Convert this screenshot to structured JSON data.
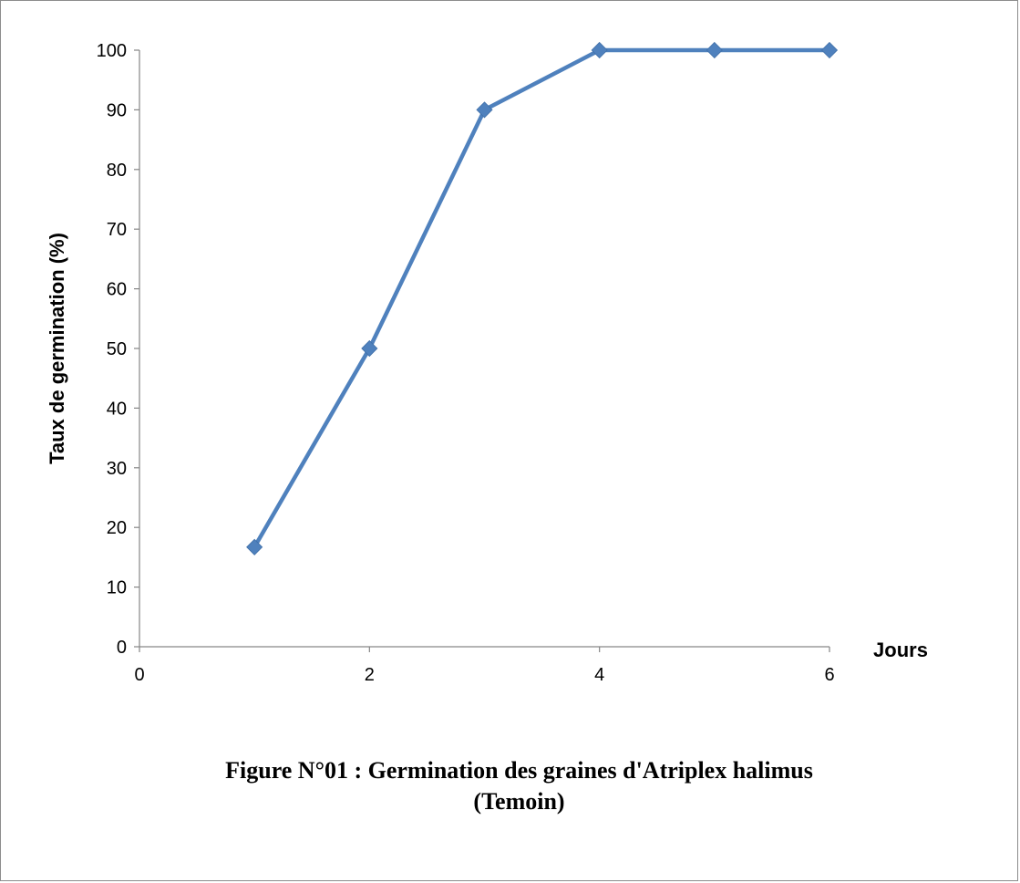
{
  "chart_data": {
    "type": "line",
    "ylabel": "Taux de germination (%)",
    "xlabel": "Jours",
    "xlim": [
      0,
      6
    ],
    "ylim": [
      0,
      100
    ],
    "xticks": [
      0,
      2,
      4,
      6
    ],
    "yticks": [
      0,
      10,
      20,
      30,
      40,
      50,
      60,
      70,
      80,
      90,
      100
    ],
    "grid": false,
    "series": [
      {
        "x": [
          1,
          2,
          3,
          4,
          5,
          6
        ],
        "values": [
          16.7,
          50,
          90,
          100,
          100,
          100
        ],
        "color": "#4f81bd",
        "marker": "diamond"
      }
    ]
  },
  "caption": {
    "line1": "Figure N°01 : Germination  des graines d'Atriplex halimus",
    "line2": "(Temoin)"
  }
}
